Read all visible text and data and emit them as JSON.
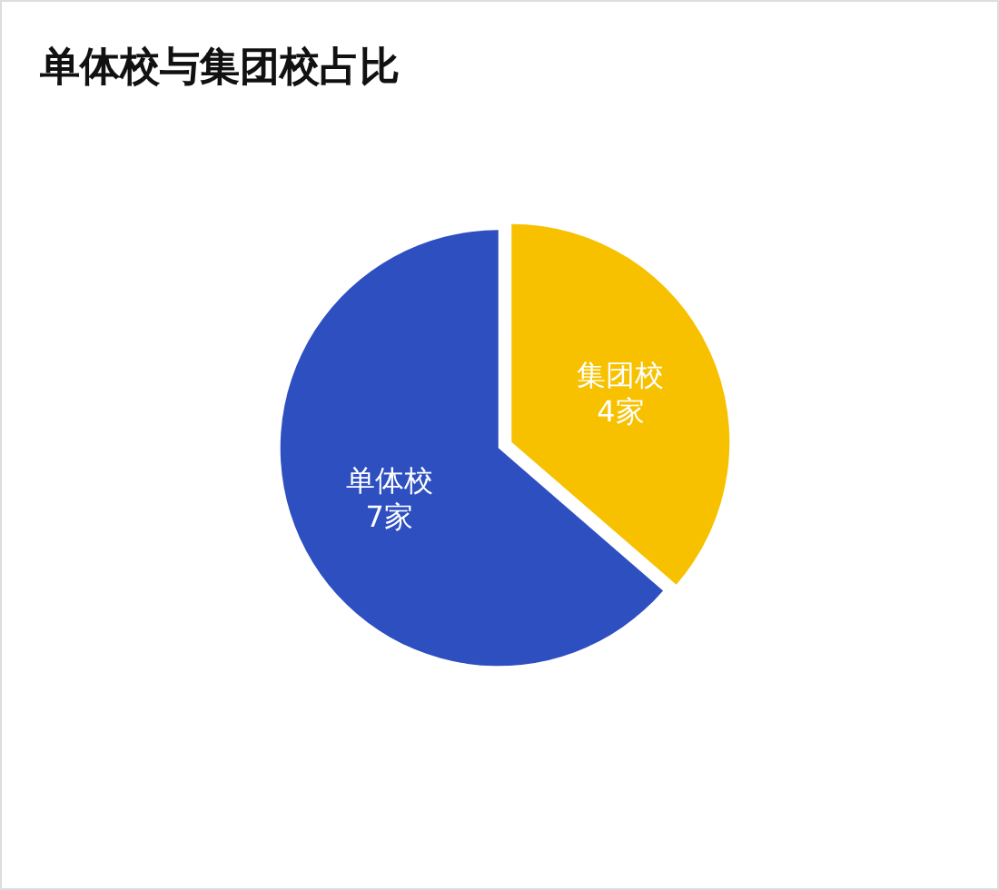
{
  "chart_data": {
    "type": "pie",
    "title": "单体校与集团校占比",
    "categories": [
      "集团校",
      "单体校"
    ],
    "values": [
      4,
      7
    ],
    "colors": [
      "#f7c100",
      "#2e4fc0"
    ],
    "value_labels": [
      "4家",
      "7家"
    ]
  }
}
